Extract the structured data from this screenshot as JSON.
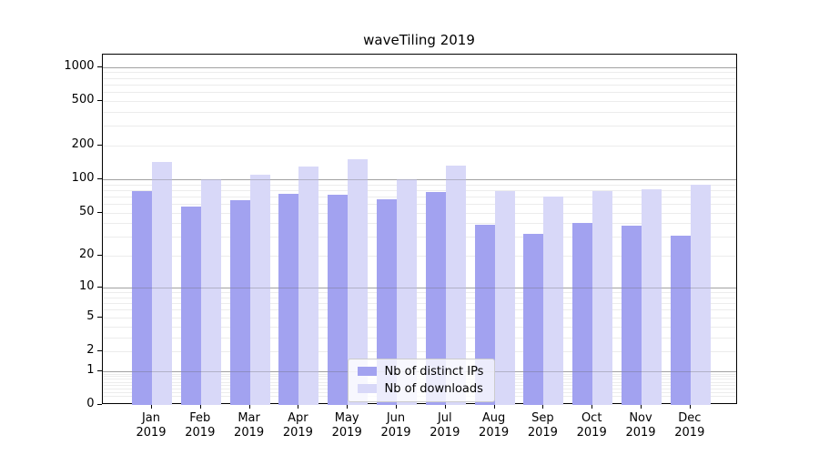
{
  "title": "waveTiling 2019",
  "colors": {
    "bar_ips": "#a2a2f0",
    "bar_downloads": "#d8d8f8",
    "major_grid": "#c0c0c0",
    "minor_grid": "#ececec",
    "major_grid_over_bars": "rgba(95,95,95,0.32)",
    "legend_border": "#cccccc",
    "axis": "#000000"
  },
  "chart_data": {
    "type": "bar",
    "title": "waveTiling 2019",
    "categories": [
      "Jan 2019",
      "Feb 2019",
      "Mar 2019",
      "Apr 2019",
      "May 2019",
      "Jun 2019",
      "Jul 2019",
      "Aug 2019",
      "Sep 2019",
      "Oct 2019",
      "Nov 2019",
      "Dec 2019"
    ],
    "series": [
      {
        "name": "Nb of distinct IPs",
        "color": "#a2a2f0",
        "values": [
          78,
          57,
          65,
          74,
          72,
          66,
          77,
          39,
          32,
          40,
          38,
          31
        ]
      },
      {
        "name": "Nb of downloads",
        "color": "#d8d8f8",
        "values": [
          143,
          100,
          110,
          131,
          151,
          101,
          132,
          78,
          70,
          78,
          81,
          89
        ]
      }
    ],
    "xlabel": "",
    "ylabel": "",
    "y_axis": {
      "scale": "log1p",
      "tick_values": [
        0,
        1,
        2,
        5,
        10,
        20,
        50,
        100,
        200,
        500,
        1000
      ],
      "major_gridlines": [
        1,
        10,
        100,
        1000
      ],
      "range": [
        0,
        1000
      ]
    },
    "grid": "on",
    "legend_position": "bottom-center"
  }
}
